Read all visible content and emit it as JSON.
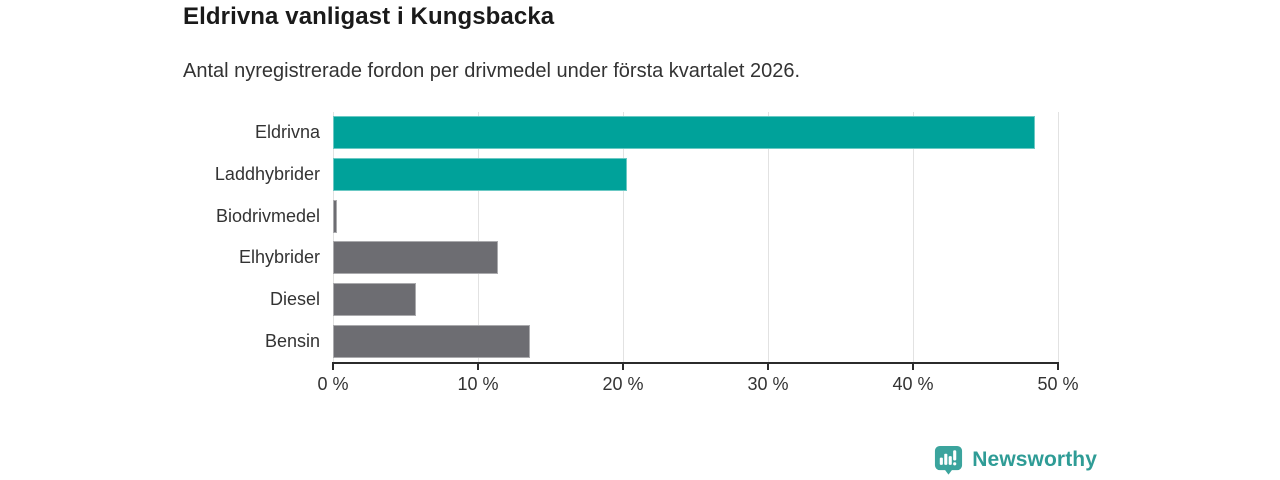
{
  "title": "Eldrivna vanligast i Kungsbacka",
  "subtitle": "Antal nyregistrerade fordon per drivmedel under första kvartalet 2026.",
  "colors": {
    "electric_bar": "#00a29a",
    "other_bar": "#6d6d72",
    "gridline": "#e2e2e2",
    "axis": "#2b2b2b",
    "text": "#333333",
    "title_text": "#1a1a1a",
    "brand_teal": "#2f9c96",
    "logo_icon_teal": "#3ba49d"
  },
  "chart_data": {
    "type": "bar",
    "orientation": "horizontal",
    "title": "Eldrivna vanligast i Kungsbacka",
    "subtitle": "Antal nyregistrerade fordon per drivmedel under första kvartalet 2026.",
    "categories": [
      "Eldrivna",
      "Laddhybrider",
      "Biodrivmedel",
      "Elhybrider",
      "Diesel",
      "Bensin"
    ],
    "values": [
      48.4,
      20.3,
      0.3,
      11.4,
      5.7,
      13.6
    ],
    "unit": "%",
    "bar_colors": [
      "#00a29a",
      "#00a29a",
      "#6d6d72",
      "#6d6d72",
      "#6d6d72",
      "#6d6d72"
    ],
    "xlim": [
      0,
      50
    ],
    "x_ticks": [
      0,
      10,
      20,
      30,
      40,
      50
    ],
    "x_tick_labels": [
      "0 %",
      "10 %",
      "20 %",
      "30 %",
      "40 %",
      "50 %"
    ],
    "grid": true,
    "legend": "none",
    "xlabel": "",
    "ylabel": ""
  },
  "footer": {
    "brand_name": "Newsworthy",
    "logo_icon": "bar-chart-speech-bubble-icon"
  }
}
